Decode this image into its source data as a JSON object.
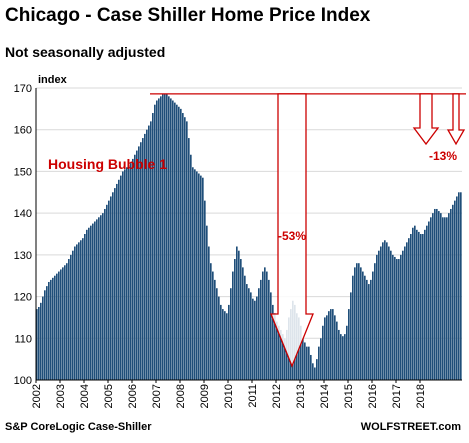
{
  "chart_data": {
    "type": "bar",
    "title": "Chicago - Case Shiller Home Price Index",
    "subtitle": "Not seasonally adjusted",
    "ylabel": "index",
    "ylim": [
      100,
      170
    ],
    "yticks": [
      100,
      110,
      120,
      130,
      140,
      150,
      160,
      170
    ],
    "xticks": [
      "2002",
      "2003",
      "2004",
      "2005",
      "2006",
      "2007",
      "2008",
      "2009",
      "2010",
      "2011",
      "2012",
      "2013",
      "2014",
      "2015",
      "2016",
      "2017",
      "2018"
    ],
    "x_start": "2002-01",
    "frequency": "monthly",
    "bar_color": "#1f4e79",
    "annotation_color": "#cc0000",
    "values": [
      117,
      117.5,
      118.5,
      120,
      121.5,
      122.5,
      123.5,
      124,
      124.5,
      125,
      125.5,
      126,
      126.5,
      127,
      127.5,
      128,
      129,
      130,
      131,
      132,
      132.5,
      133,
      133.5,
      134,
      135,
      136,
      136.5,
      137,
      137.5,
      138,
      138.5,
      139,
      139.5,
      140,
      141,
      142,
      143,
      144,
      145,
      146,
      147,
      148,
      149,
      150,
      150.5,
      151,
      151.5,
      152,
      153,
      154,
      155,
      156,
      157,
      158,
      159,
      160,
      161,
      162,
      164,
      166,
      167,
      167.5,
      168,
      168.5,
      168.5,
      168.5,
      168,
      167.5,
      167,
      166.5,
      166,
      165.5,
      165,
      164,
      163,
      162,
      158,
      154,
      151,
      150.5,
      150,
      149.5,
      149,
      148.5,
      143,
      137,
      132,
      128,
      126,
      124,
      122,
      120,
      118,
      117,
      116.5,
      116,
      118,
      122,
      126,
      129,
      132,
      131,
      129,
      127,
      125,
      123,
      122,
      121,
      119.5,
      119,
      120,
      122,
      124,
      126,
      127,
      126,
      124,
      121,
      118,
      116,
      114,
      113,
      112,
      111,
      110,
      112,
      115,
      117,
      119,
      118,
      116,
      115,
      113,
      110,
      109,
      108,
      108,
      106,
      104,
      103,
      105,
      108,
      110,
      113,
      115,
      115.5,
      116.5,
      117,
      117,
      115.5,
      114,
      112,
      111,
      110.5,
      111,
      113,
      117,
      121,
      125,
      127,
      128,
      128,
      127,
      126,
      125,
      124,
      123,
      124,
      126,
      128,
      130,
      131,
      132,
      133,
      133.5,
      133,
      132,
      131,
      130,
      129.5,
      129,
      129,
      130,
      131,
      132,
      133,
      134,
      135,
      136.5,
      137,
      136,
      135.5,
      135,
      135,
      136,
      137,
      138,
      139,
      140,
      141,
      141,
      140.5,
      140,
      139,
      139,
      139,
      140,
      141,
      142,
      143,
      144,
      145,
      145
    ],
    "annotations": [
      {
        "text": "Housing Bubble 1"
      },
      {
        "text": "-53%"
      },
      {
        "text": "-13%"
      }
    ]
  },
  "footer": {
    "source": "S&P CoreLogic Case-Shiller",
    "brand": "WOLFSTREET.com"
  }
}
